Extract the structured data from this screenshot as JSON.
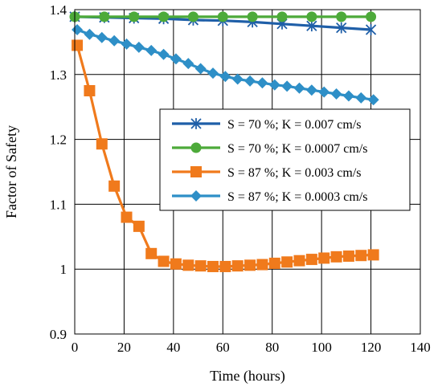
{
  "chart_data": {
    "type": "line",
    "xlabel": "Time (hours)",
    "ylabel": "Factor of Safety",
    "xlim": [
      0,
      140
    ],
    "ylim": [
      0.9,
      1.4
    ],
    "xticks": [
      0,
      20,
      40,
      60,
      80,
      100,
      120,
      140
    ],
    "yticks": [
      0.9,
      1,
      1.1,
      1.2,
      1.3,
      1.4
    ],
    "xtick_labels": [
      "0",
      "20",
      "40",
      "60",
      "80",
      "100",
      "120",
      "140"
    ],
    "ytick_labels": [
      "0.9",
      "1",
      "1.1",
      "1.2",
      "1.3",
      "1.4"
    ],
    "grid": true,
    "legend_position": "right",
    "series": [
      {
        "name": "S = 70 %; K = 0.007 cm/s",
        "color": "#1f5fa8",
        "marker": "asterisk",
        "x": [
          0,
          12,
          24,
          36,
          48,
          60,
          72,
          84,
          96,
          108,
          120
        ],
        "y": [
          1.389,
          1.388,
          1.387,
          1.386,
          1.384,
          1.383,
          1.381,
          1.378,
          1.375,
          1.372,
          1.369
        ]
      },
      {
        "name": "S = 70 %; K = 0.0007 cm/s",
        "color": "#4daa3a",
        "marker": "circle",
        "x": [
          0,
          12,
          24,
          36,
          48,
          60,
          72,
          84,
          96,
          108,
          120
        ],
        "y": [
          1.389,
          1.389,
          1.389,
          1.389,
          1.389,
          1.389,
          1.389,
          1.389,
          1.389,
          1.389,
          1.389
        ]
      },
      {
        "name": "S = 87 %; K = 0.003 cm/s",
        "color": "#f07a1c",
        "marker": "square",
        "x": [
          1,
          6,
          11,
          16,
          21,
          26,
          31,
          36,
          41,
          46,
          51,
          56,
          61,
          66,
          71,
          76,
          81,
          86,
          91,
          96,
          101,
          106,
          111,
          116,
          121
        ],
        "y": [
          1.345,
          1.275,
          1.193,
          1.128,
          1.08,
          1.066,
          1.024,
          1.012,
          1.008,
          1.006,
          1.005,
          1.004,
          1.004,
          1.005,
          1.006,
          1.007,
          1.009,
          1.011,
          1.013,
          1.015,
          1.017,
          1.019,
          1.02,
          1.021,
          1.022
        ]
      },
      {
        "name": "S = 87 %; K = 0.0003 cm/s",
        "color": "#2e8fc7",
        "marker": "diamond",
        "x": [
          1,
          6,
          11,
          16,
          21,
          26,
          31,
          36,
          41,
          46,
          51,
          56,
          61,
          66,
          71,
          76,
          81,
          86,
          91,
          96,
          101,
          106,
          111,
          116,
          121
        ],
        "y": [
          1.369,
          1.362,
          1.357,
          1.352,
          1.347,
          1.342,
          1.337,
          1.331,
          1.324,
          1.317,
          1.309,
          1.302,
          1.297,
          1.293,
          1.29,
          1.287,
          1.284,
          1.282,
          1.279,
          1.276,
          1.273,
          1.27,
          1.267,
          1.264,
          1.261
        ]
      }
    ]
  }
}
